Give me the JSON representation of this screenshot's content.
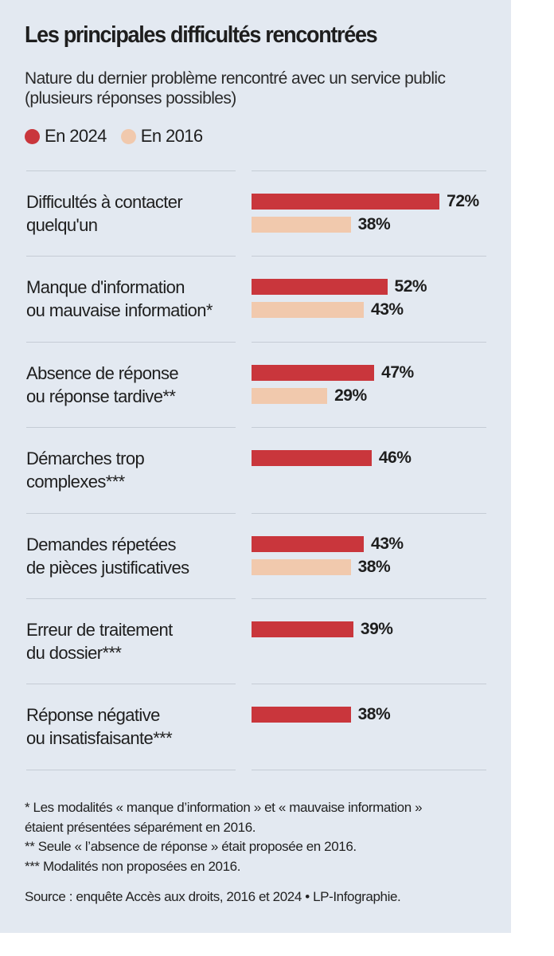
{
  "chart_data": {
    "type": "bar",
    "orientation": "horizontal",
    "title": "Les principales difficultés rencontrées",
    "subtitle": "Nature du dernier problème rencontré avec un service public (plusieurs réponses possibles)",
    "unit": "%",
    "xlim": [
      0,
      100
    ],
    "grid": false,
    "legend_placement": "top-left",
    "categories": [
      "Difficultés à contacter quelqu'un",
      "Manque d'information ou mauvaise information*",
      "Absence de réponse ou réponse tardive**",
      "Démarches trop complexes***",
      "Demandes répétées de pièces justificatives",
      "Erreur de traitement du dossier***",
      "Réponse négative ou insatisfaisante***"
    ],
    "category_lines": [
      [
        "Difficultés à contacter",
        "quelqu'un"
      ],
      [
        "Manque d'information",
        "ou mauvaise information*"
      ],
      [
        "Absence de réponse",
        "ou réponse tardive**"
      ],
      [
        "Démarches trop",
        "complexes***"
      ],
      [
        "Demandes répetées",
        "de pièces justificatives"
      ],
      [
        "Erreur de traitement",
        "du dossier***"
      ],
      [
        "Réponse négative",
        "ou insatisfaisante***"
      ]
    ],
    "series": [
      {
        "name": "En 2024",
        "color": "#c9363c",
        "values": [
          72,
          52,
          47,
          46,
          43,
          39,
          38
        ],
        "labels": [
          "72%",
          "52%",
          "47%",
          "46%",
          "43%",
          "39%",
          "38%"
        ]
      },
      {
        "name": "En 2016",
        "color": "#f1c9ad",
        "values": [
          38,
          43,
          29,
          null,
          38,
          null,
          null
        ],
        "labels": [
          "38%",
          "43%",
          "29%",
          null,
          "38%",
          null,
          null
        ]
      }
    ]
  },
  "notes": [
    "* Les modalités « manque d’information » et « mauvaise information »",
    "étaient présentées séparément en 2016.",
    "** Seule « l’absence de réponse » était proposée en 2016.",
    "*** Modalités non proposées en 2016."
  ],
  "source": "Source : enquête Accès aux droits, 2016 et 2024 • LP-Infographie."
}
